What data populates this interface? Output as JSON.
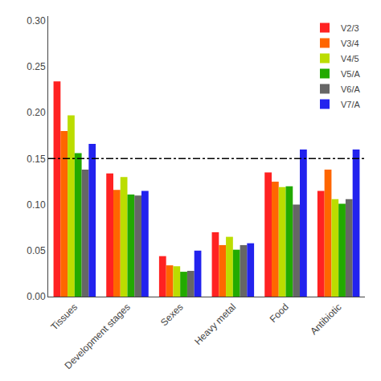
{
  "chart_data": {
    "type": "bar",
    "categories": [
      "Tissues",
      "Development stages",
      "Sexes",
      "Heavy metal",
      "Food",
      "Antibiotic"
    ],
    "series": [
      {
        "name": "V2/3",
        "color": "#FF2222",
        "values": [
          0.234,
          0.134,
          0.044,
          0.07,
          0.135,
          0.115
        ]
      },
      {
        "name": "V3/4",
        "color": "#FF6600",
        "values": [
          0.18,
          0.116,
          0.034,
          0.056,
          0.125,
          0.138
        ]
      },
      {
        "name": "V4/5",
        "color": "#BBDD00",
        "values": [
          0.197,
          0.13,
          0.033,
          0.065,
          0.119,
          0.106
        ]
      },
      {
        "name": "V5/A",
        "color": "#22AA00",
        "values": [
          0.156,
          0.111,
          0.027,
          0.051,
          0.12,
          0.101
        ]
      },
      {
        "name": "V6/A",
        "color": "#666666",
        "values": [
          0.138,
          0.11,
          0.028,
          0.056,
          0.1,
          0.106
        ]
      },
      {
        "name": "V7/A",
        "color": "#2222EE",
        "values": [
          0.166,
          0.115,
          0.05,
          0.058,
          0.16,
          0.16
        ]
      }
    ],
    "hline_y": 0.15,
    "ylim": [
      0.0,
      0.305
    ],
    "yticks": [
      {
        "value": 0,
        "label": "0.00"
      },
      0.05,
      {
        "value": 0.1,
        "label": "0.10"
      },
      0.15,
      {
        "value": 0.2,
        "label": "0.20"
      },
      0.25,
      {
        "value": 0.3,
        "label": "0.30"
      }
    ],
    "grid": false,
    "legend": "upper right"
  }
}
